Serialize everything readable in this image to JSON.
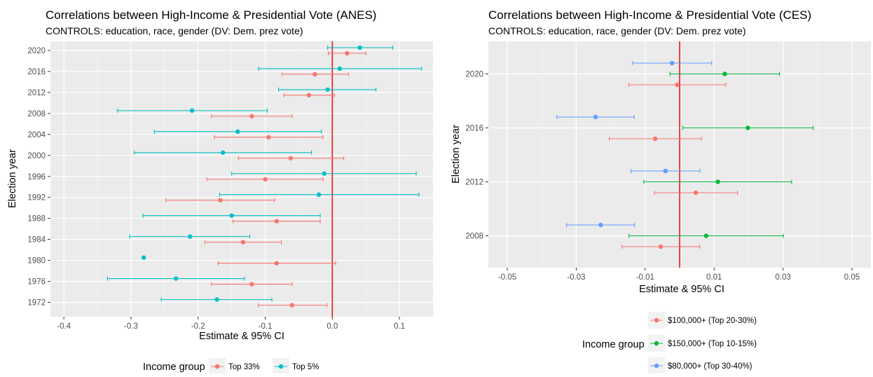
{
  "chart_data": [
    {
      "type": "scatter",
      "subtype": "point-range",
      "title": "Correlations between High-Income & Presidential Vote (ANES)",
      "subtitle": "CONTROLS: education, race, gender (DV: Dem. prez vote)",
      "xlabel": "Estimate & 95% CI",
      "ylabel": "Election year",
      "xlim": [
        -0.42,
        0.15
      ],
      "x_ticks": [
        -0.4,
        -0.3,
        -0.2,
        -0.1,
        0.0,
        0.1
      ],
      "x_tick_labels": [
        "-0.4",
        "-0.3",
        "-0.2",
        "-0.1",
        "0.0",
        "0.1"
      ],
      "y_ticks": [
        1972,
        1976,
        1980,
        1984,
        1988,
        1992,
        1996,
        2000,
        2004,
        2008,
        2012,
        2016,
        2020
      ],
      "y_tick_labels": [
        "1972",
        "1976",
        "1980",
        "1984",
        "1988",
        "1992",
        "1996",
        "2000",
        "2004",
        "2008",
        "2012",
        "2016",
        "2020"
      ],
      "reference_line": 0.0,
      "reference_line_color": "#e41a1c",
      "grid": true,
      "background": "#ebebeb",
      "legend_title": "Income group",
      "legend_position": "bottom",
      "series": [
        {
          "name": "Top 33%",
          "color": "#F8766D",
          "points": [
            {
              "year": 1972,
              "est": -0.06,
              "lo": -0.11,
              "hi": -0.008
            },
            {
              "year": 1976,
              "est": -0.12,
              "lo": -0.18,
              "hi": -0.06
            },
            {
              "year": 1980,
              "est": -0.083,
              "lo": -0.17,
              "hi": 0.005
            },
            {
              "year": 1984,
              "est": -0.133,
              "lo": -0.19,
              "hi": -0.076
            },
            {
              "year": 1988,
              "est": -0.083,
              "lo": -0.148,
              "hi": -0.018
            },
            {
              "year": 1992,
              "est": -0.167,
              "lo": -0.248,
              "hi": -0.086
            },
            {
              "year": 1996,
              "est": -0.1,
              "lo": -0.187,
              "hi": -0.014
            },
            {
              "year": 2000,
              "est": -0.062,
              "lo": -0.14,
              "hi": 0.017
            },
            {
              "year": 2004,
              "est": -0.095,
              "lo": -0.176,
              "hi": -0.014
            },
            {
              "year": 2008,
              "est": -0.12,
              "lo": -0.18,
              "hi": -0.06
            },
            {
              "year": 2012,
              "est": -0.035,
              "lo": -0.072,
              "hi": 0.003
            },
            {
              "year": 2016,
              "est": -0.026,
              "lo": -0.075,
              "hi": 0.024
            },
            {
              "year": 2020,
              "est": 0.022,
              "lo": -0.006,
              "hi": 0.05
            }
          ]
        },
        {
          "name": "Top 5%",
          "color": "#00BFC4",
          "points": [
            {
              "year": 1972,
              "est": -0.172,
              "lo": -0.255,
              "hi": -0.09
            },
            {
              "year": 1976,
              "est": -0.233,
              "lo": -0.335,
              "hi": -0.131
            },
            {
              "year": 1980,
              "est": -0.281,
              "lo": -0.281,
              "hi": -0.281
            },
            {
              "year": 1984,
              "est": -0.212,
              "lo": -0.302,
              "hi": -0.123
            },
            {
              "year": 1988,
              "est": -0.15,
              "lo": -0.282,
              "hi": -0.018
            },
            {
              "year": 1992,
              "est": -0.02,
              "lo": -0.168,
              "hi": 0.129
            },
            {
              "year": 1996,
              "est": -0.012,
              "lo": -0.15,
              "hi": 0.125
            },
            {
              "year": 2000,
              "est": -0.163,
              "lo": -0.295,
              "hi": -0.031
            },
            {
              "year": 2004,
              "est": -0.141,
              "lo": -0.265,
              "hi": -0.016
            },
            {
              "year": 2008,
              "est": -0.209,
              "lo": -0.32,
              "hi": -0.097
            },
            {
              "year": 2012,
              "est": -0.007,
              "lo": -0.08,
              "hi": 0.065
            },
            {
              "year": 2016,
              "est": 0.011,
              "lo": -0.11,
              "hi": 0.133
            },
            {
              "year": 2020,
              "est": 0.041,
              "lo": -0.007,
              "hi": 0.09
            }
          ]
        }
      ]
    },
    {
      "type": "scatter",
      "subtype": "point-range",
      "title": "Correlations between High-Income & Presidential Vote (CES)",
      "subtitle": "CONTROLS: education, race, gender (DV: Dem. prez vote)",
      "xlabel": "Estimate & 95% CI",
      "ylabel": "Election year",
      "xlim": [
        -0.0555,
        0.0555
      ],
      "x_ticks": [
        -0.05,
        -0.03,
        -0.01,
        0.01,
        0.03,
        0.05
      ],
      "x_tick_labels": [
        "-0.05",
        "-0.03",
        "-0.01",
        "0.01",
        "0.03",
        "0.05"
      ],
      "y_ticks": [
        2008,
        2012,
        2016,
        2020
      ],
      "y_tick_labels": [
        "2008",
        "2012",
        "2016",
        "2020"
      ],
      "reference_line": 0.0,
      "reference_line_color": "#e41a1c",
      "grid": true,
      "background": "#ebebeb",
      "legend_title": "Income group",
      "legend_position": "bottom",
      "series": [
        {
          "name": "$100,000+ (Top 20-30%)",
          "color": "#F8766D",
          "points": [
            {
              "year": 2008,
              "est": -0.0055,
              "lo": -0.0167,
              "hi": 0.0058
            },
            {
              "year": 2012,
              "est": 0.0047,
              "lo": -0.0073,
              "hi": 0.0168
            },
            {
              "year": 2016,
              "est": -0.0071,
              "lo": -0.0204,
              "hi": 0.0063
            },
            {
              "year": 2020,
              "est": -0.0007,
              "lo": -0.0147,
              "hi": 0.0134
            }
          ]
        },
        {
          "name": "$150,000+ (Top 10-15%)",
          "color": "#00BA38",
          "points": [
            {
              "year": 2008,
              "est": 0.0077,
              "lo": -0.0147,
              "hi": 0.0301
            },
            {
              "year": 2012,
              "est": 0.0111,
              "lo": -0.0104,
              "hi": 0.0325
            },
            {
              "year": 2016,
              "est": 0.0198,
              "lo": 0.0009,
              "hi": 0.0387
            },
            {
              "year": 2020,
              "est": 0.0131,
              "lo": -0.0028,
              "hi": 0.029
            }
          ]
        },
        {
          "name": "$80,000+ (Top 30-40%)",
          "color": "#619CFF",
          "points": [
            {
              "year": 2008,
              "est": -0.0229,
              "lo": -0.0328,
              "hi": -0.0131
            },
            {
              "year": 2012,
              "est": -0.0041,
              "lo": -0.0141,
              "hi": 0.0059
            },
            {
              "year": 2016,
              "est": -0.0244,
              "lo": -0.0356,
              "hi": -0.0132
            },
            {
              "year": 2020,
              "est": -0.0022,
              "lo": -0.0136,
              "hi": 0.0093
            }
          ]
        }
      ]
    }
  ]
}
